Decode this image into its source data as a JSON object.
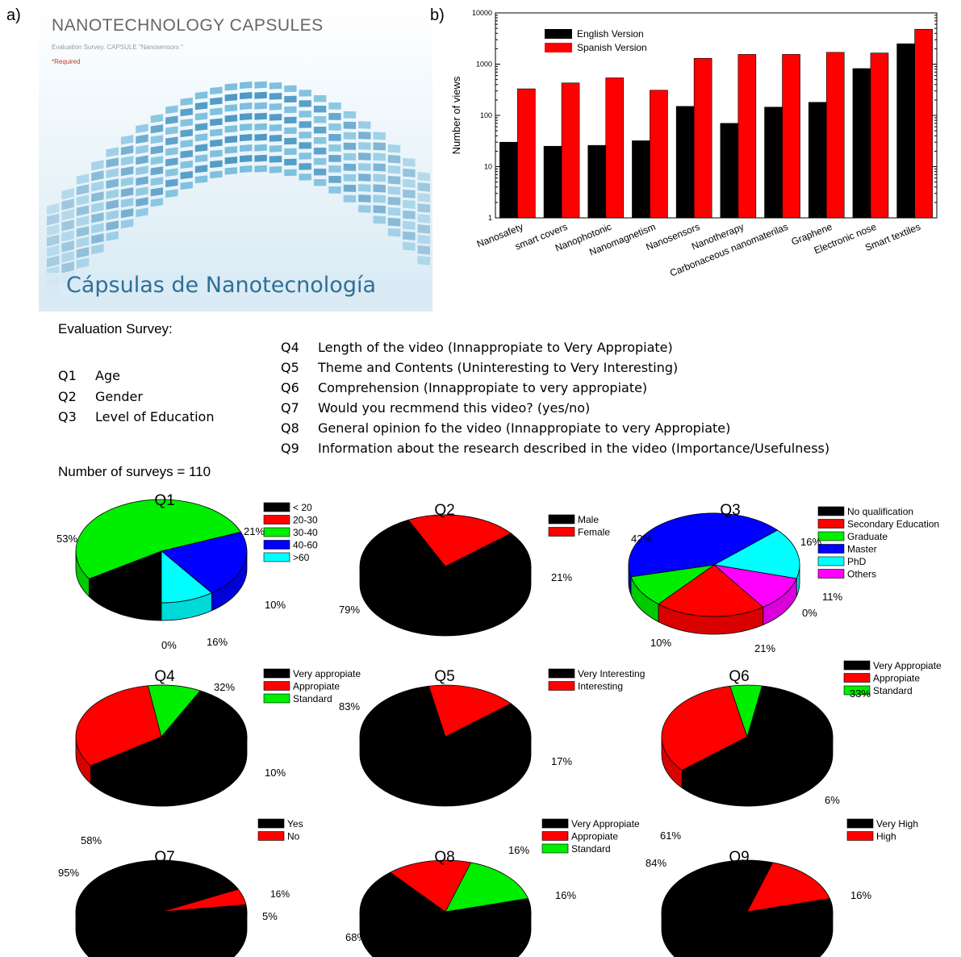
{
  "panel_a": {
    "label": "a)",
    "title": "NANOTECHNOLOGY CAPSULES",
    "subtitle": "Evaluation Survey. CAPSULE \"Nanosensors \"",
    "required": "*Required",
    "banner_text": "Cápsulas de Nanotecnología"
  },
  "panel_b_label": "b)",
  "survey": {
    "heading": "Evaluation Survey:",
    "questions": [
      {
        "num": "Q1",
        "text": "Age"
      },
      {
        "num": "Q2",
        "text": "Gender"
      },
      {
        "num": "Q3",
        "text": "Level of Education"
      },
      {
        "num": "Q4",
        "text": "Length of the video (Innappropiate to Very Appropiate)"
      },
      {
        "num": "Q5",
        "text": "Theme and Contents (Uninteresting to Very Interesting)"
      },
      {
        "num": "Q6",
        "text": "Comprehension (Innappropiate to very appropiate)"
      },
      {
        "num": "Q7",
        "text": "Would you recmmend this video? (yes/no)"
      },
      {
        "num": "Q8",
        "text": "General opinion fo the video (Innappropiate to very Appropiate)"
      },
      {
        "num": "Q9",
        "text": "Information about the research described in the video (Importance/Usefulness)"
      }
    ],
    "count_text": "Number of surveys = 110"
  },
  "chart_data": [
    {
      "type": "bar",
      "panel": "b)",
      "title": "",
      "xlabel": "",
      "ylabel": "Number of views",
      "yscale": "log",
      "ylim": [
        1,
        10000
      ],
      "yticks": [
        "1",
        "10",
        "100",
        "1000",
        "10000"
      ],
      "categories": [
        "Nanosafety",
        "smart covers",
        "Nanophotonic",
        "Nanomagnetism",
        "Nanosensors",
        "Nanotherapy",
        "Carbonaceous nanomaterilas",
        "Graphene",
        "Electronic nose",
        "Smart textiles"
      ],
      "series": [
        {
          "name": "English Version",
          "color": "#000000",
          "values": [
            30,
            25,
            26,
            32,
            150,
            70,
            145,
            180,
            820,
            2500
          ]
        },
        {
          "name": "Spanish Version",
          "color": "#ff0000",
          "values": [
            330,
            430,
            540,
            310,
            1300,
            1550,
            1550,
            1700,
            1650,
            4800
          ]
        }
      ],
      "legend_position": "top-left",
      "grid": false
    },
    {
      "type": "pie",
      "title": "Q1",
      "legend": [
        "< 20",
        "20-30",
        "30-40",
        "40-60",
        ">60"
      ],
      "colors": [
        "#000000",
        "#ff0000",
        "#00ee00",
        "#0000ff",
        "#00ffff"
      ],
      "values": [
        16,
        0,
        53,
        21,
        10
      ],
      "labels": [
        "16%",
        "0%",
        "53%",
        "21%",
        "10%"
      ]
    },
    {
      "type": "pie",
      "title": "Q2",
      "legend": [
        "Male",
        "Female"
      ],
      "colors": [
        "#000000",
        "#ff0000"
      ],
      "values": [
        79,
        21
      ],
      "labels": [
        "79%",
        "21%"
      ]
    },
    {
      "type": "pie",
      "title": "Q3",
      "legend": [
        "No qualification",
        "Secondary Education",
        "Graduate",
        "Master",
        "PhD",
        "Others"
      ],
      "colors": [
        "#000000",
        "#ff0000",
        "#00ee00",
        "#0000ff",
        "#00ffff",
        "#ff00ff"
      ],
      "values": [
        0,
        21,
        10,
        42,
        16,
        11
      ],
      "labels": [
        "0%",
        "21%",
        "10%",
        "42%",
        "16%",
        "11%"
      ]
    },
    {
      "type": "pie",
      "title": "Q4",
      "legend": [
        "Very appropiate",
        "Appropiate",
        "Standard"
      ],
      "colors": [
        "#000000",
        "#ff0000",
        "#00ee00"
      ],
      "values": [
        58,
        32,
        10
      ],
      "labels": [
        "58%",
        "32%",
        "10%"
      ]
    },
    {
      "type": "pie",
      "title": "Q5",
      "legend": [
        "Very Interesting",
        "Interesting"
      ],
      "colors": [
        "#000000",
        "#ff0000"
      ],
      "values": [
        83,
        17
      ],
      "labels": [
        "83%",
        "17%"
      ]
    },
    {
      "type": "pie",
      "title": "Q6",
      "legend": [
        "Very Appropiate",
        "Appropiate",
        "Standard"
      ],
      "colors": [
        "#000000",
        "#ff0000",
        "#00ee00"
      ],
      "values": [
        61,
        33,
        6
      ],
      "labels": [
        "61%",
        "33%",
        "6%"
      ]
    },
    {
      "type": "pie",
      "title": "Q7",
      "legend": [
        "Yes",
        "No"
      ],
      "colors": [
        "#000000",
        "#ff0000"
      ],
      "values": [
        95,
        5
      ],
      "labels": [
        "95%",
        "5%"
      ],
      "extra_label": "16%"
    },
    {
      "type": "pie",
      "title": "Q8",
      "legend": [
        "Very Appropiate",
        "Appropiate",
        "Standard"
      ],
      "colors": [
        "#000000",
        "#ff0000",
        "#00ee00"
      ],
      "values": [
        68,
        16,
        16
      ],
      "labels": [
        "68%",
        "16%",
        "16%"
      ]
    },
    {
      "type": "pie",
      "title": "Q9",
      "legend": [
        "Very High",
        "High"
      ],
      "colors": [
        "#000000",
        "#ff0000"
      ],
      "values": [
        84,
        16
      ],
      "labels": [
        "84%",
        "16%"
      ]
    }
  ]
}
